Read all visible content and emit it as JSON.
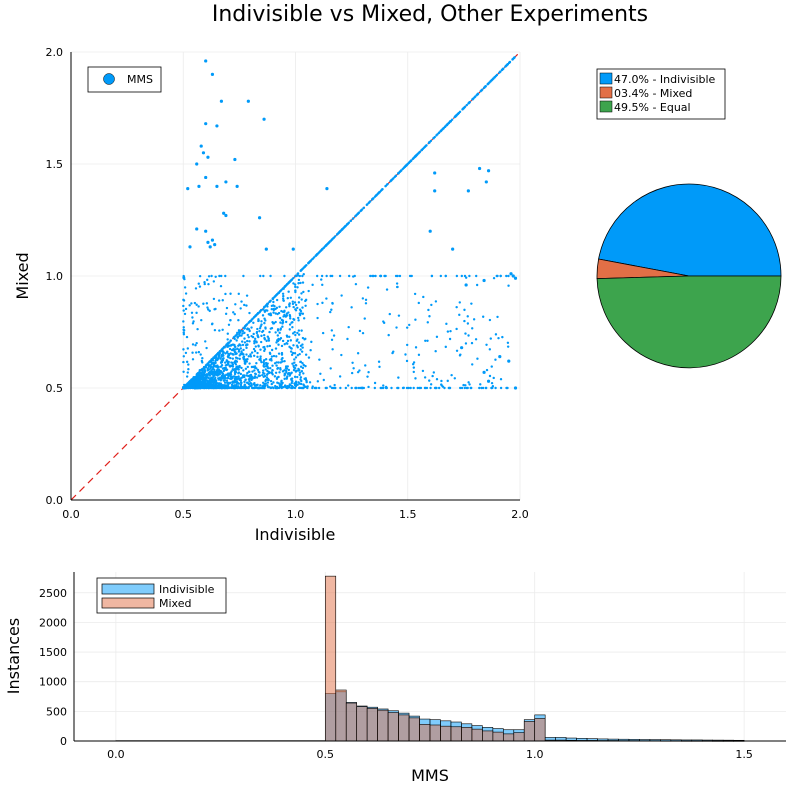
{
  "figure": {
    "title": "Indivisible vs Mixed, Other Experiments",
    "colors": {
      "indivisible": "#009AF9",
      "mixed": "#E26F46",
      "equal": "#3DA44D",
      "diagonal": "#E0201B",
      "grid": "#EBEBEB",
      "overlap": "#A8999B"
    }
  },
  "chart_data": [
    {
      "type": "scatter",
      "xlabel": "Indivisible",
      "ylabel": "Mixed",
      "xlim": [
        0,
        2
      ],
      "ylim": [
        0,
        2
      ],
      "xticks": [
        "0.0",
        "0.5",
        "1.0",
        "1.5",
        "2.0"
      ],
      "yticks": [
        "0.0",
        "0.5",
        "1.0",
        "1.5",
        "2.0"
      ],
      "grid": true,
      "legend": {
        "placement": "top-left",
        "entries": [
          "MMS"
        ]
      },
      "reference_line": {
        "style": "dashed",
        "from": [
          0,
          0
        ],
        "to": [
          2,
          2
        ]
      },
      "series": [
        {
          "name": "MMS",
          "points": [
            [
              0.6,
              1.96
            ],
            [
              0.63,
              1.9
            ],
            [
              0.67,
              1.78
            ],
            [
              0.79,
              1.78
            ],
            [
              0.86,
              1.7
            ],
            [
              0.6,
              1.68
            ],
            [
              0.65,
              1.67
            ],
            [
              0.58,
              1.58
            ],
            [
              0.59,
              1.55
            ],
            [
              0.61,
              1.53
            ],
            [
              0.73,
              1.52
            ],
            [
              0.56,
              1.5
            ],
            [
              0.6,
              1.44
            ],
            [
              0.69,
              1.42
            ],
            [
              0.65,
              1.4
            ],
            [
              0.74,
              1.4
            ],
            [
              0.57,
              1.4
            ],
            [
              1.14,
              1.39
            ],
            [
              0.52,
              1.39
            ],
            [
              0.68,
              1.28
            ],
            [
              0.69,
              1.27
            ],
            [
              0.84,
              1.26
            ],
            [
              0.56,
              1.21
            ],
            [
              0.6,
              1.2
            ],
            [
              0.63,
              1.16
            ],
            [
              0.61,
              1.15
            ],
            [
              0.64,
              1.14
            ],
            [
              0.62,
              1.13
            ],
            [
              0.53,
              1.13
            ],
            [
              0.87,
              1.12
            ],
            [
              0.99,
              1.12
            ],
            [
              1.6,
              1.2
            ],
            [
              1.7,
              1.12
            ],
            [
              1.62,
              1.38
            ],
            [
              1.77,
              1.38
            ],
            [
              1.85,
              1.42
            ],
            [
              1.86,
              1.47
            ],
            [
              1.82,
              1.48
            ],
            [
              1.62,
              1.46
            ],
            [
              1.96,
              1.01
            ],
            [
              1.97,
              1.0
            ],
            [
              1.98,
              0.99
            ],
            [
              1.84,
              0.98
            ],
            [
              1.76,
              0.96
            ],
            [
              1.95,
              0.62
            ],
            [
              1.91,
              0.64
            ],
            [
              1.84,
              0.57
            ],
            [
              1.98,
              0.5
            ],
            [
              1.86,
              0.53
            ],
            [
              1.74,
              0.68
            ]
          ]
        }
      ]
    },
    {
      "type": "pie",
      "legend": {
        "placement": "top-right"
      },
      "slices": [
        {
          "label": "47.0% - Indivisible",
          "value": 47.0
        },
        {
          "label": "03.4% - Mixed",
          "value": 3.4
        },
        {
          "label": "49.5% - Equal",
          "value": 49.5
        }
      ]
    },
    {
      "type": "histogram",
      "xlabel": "MMS",
      "ylabel": "Instances",
      "xlim": [
        -0.1,
        1.6
      ],
      "ylim": [
        0,
        2850
      ],
      "xticks": [
        "0.0",
        "0.5",
        "1.0",
        "1.5"
      ],
      "yticks": [
        "0",
        "500",
        "1000",
        "1500",
        "2000",
        "2500"
      ],
      "grid": true,
      "bin_width": 0.025,
      "legend": {
        "placement": "top-left",
        "entries": [
          "Indivisible",
          "Mixed"
        ]
      },
      "series": [
        {
          "name": "Indivisible",
          "bins": [
            [
              0.0,
              0.5,
              5
            ],
            [
              0.5,
              0.525,
              800
            ],
            [
              0.525,
              0.55,
              830
            ],
            [
              0.55,
              0.575,
              650
            ],
            [
              0.575,
              0.6,
              590
            ],
            [
              0.6,
              0.625,
              570
            ],
            [
              0.625,
              0.65,
              540
            ],
            [
              0.65,
              0.675,
              510
            ],
            [
              0.675,
              0.7,
              470
            ],
            [
              0.7,
              0.725,
              420
            ],
            [
              0.725,
              0.75,
              370
            ],
            [
              0.75,
              0.775,
              360
            ],
            [
              0.775,
              0.8,
              340
            ],
            [
              0.8,
              0.825,
              320
            ],
            [
              0.825,
              0.85,
              290
            ],
            [
              0.85,
              0.875,
              260
            ],
            [
              0.875,
              0.9,
              230
            ],
            [
              0.9,
              0.925,
              210
            ],
            [
              0.925,
              0.95,
              190
            ],
            [
              0.95,
              0.975,
              190
            ],
            [
              0.975,
              1.0,
              360
            ],
            [
              1.0,
              1.025,
              440
            ],
            [
              1.025,
              1.05,
              60
            ],
            [
              1.05,
              1.075,
              60
            ],
            [
              1.075,
              1.1,
              50
            ],
            [
              1.1,
              1.125,
              45
            ],
            [
              1.125,
              1.15,
              40
            ],
            [
              1.15,
              1.175,
              35
            ],
            [
              1.175,
              1.2,
              32
            ],
            [
              1.2,
              1.225,
              30
            ],
            [
              1.225,
              1.25,
              28
            ],
            [
              1.25,
              1.275,
              25
            ],
            [
              1.275,
              1.3,
              24
            ],
            [
              1.3,
              1.325,
              22
            ],
            [
              1.325,
              1.35,
              20
            ],
            [
              1.35,
              1.375,
              18
            ],
            [
              1.375,
              1.4,
              18
            ],
            [
              1.4,
              1.425,
              16
            ],
            [
              1.425,
              1.45,
              15
            ],
            [
              1.45,
              1.475,
              14
            ],
            [
              1.475,
              1.5,
              12
            ]
          ]
        },
        {
          "name": "Mixed",
          "bins": [
            [
              0.0,
              0.5,
              5
            ],
            [
              0.5,
              0.525,
              2780
            ],
            [
              0.525,
              0.55,
              860
            ],
            [
              0.55,
              0.575,
              640
            ],
            [
              0.575,
              0.6,
              580
            ],
            [
              0.6,
              0.625,
              550
            ],
            [
              0.625,
              0.65,
              520
            ],
            [
              0.65,
              0.675,
              480
            ],
            [
              0.675,
              0.7,
              440
            ],
            [
              0.7,
              0.725,
              390
            ],
            [
              0.725,
              0.75,
              280
            ],
            [
              0.75,
              0.775,
              270
            ],
            [
              0.775,
              0.8,
              250
            ],
            [
              0.8,
              0.825,
              240
            ],
            [
              0.825,
              0.85,
              230
            ],
            [
              0.85,
              0.875,
              200
            ],
            [
              0.875,
              0.9,
              170
            ],
            [
              0.9,
              0.925,
              150
            ],
            [
              0.925,
              0.95,
              120
            ],
            [
              0.95,
              0.975,
              140
            ],
            [
              0.975,
              1.0,
              330
            ],
            [
              1.0,
              1.025,
              380
            ],
            [
              1.025,
              1.05,
              15
            ],
            [
              1.05,
              1.075,
              15
            ],
            [
              1.075,
              1.1,
              12
            ],
            [
              1.1,
              1.125,
              10
            ],
            [
              1.125,
              1.15,
              10
            ],
            [
              1.15,
              1.175,
              8
            ],
            [
              1.175,
              1.2,
              8
            ],
            [
              1.2,
              1.225,
              6
            ],
            [
              1.225,
              1.25,
              6
            ],
            [
              1.25,
              1.275,
              5
            ],
            [
              1.275,
              1.3,
              5
            ],
            [
              1.3,
              1.325,
              4
            ],
            [
              1.325,
              1.35,
              4
            ],
            [
              1.35,
              1.375,
              3
            ],
            [
              1.375,
              1.4,
              3
            ],
            [
              1.4,
              1.425,
              3
            ],
            [
              1.425,
              1.45,
              2
            ],
            [
              1.45,
              1.475,
              2
            ],
            [
              1.475,
              1.5,
              2
            ]
          ]
        }
      ]
    }
  ]
}
